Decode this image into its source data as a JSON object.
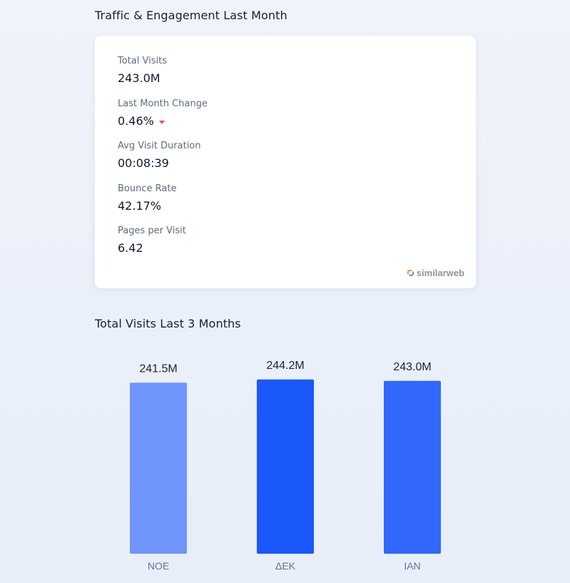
{
  "traffic": {
    "title": "Traffic & Engagement Last Month",
    "metrics": [
      {
        "label": "Total Visits",
        "value": "243.0M"
      },
      {
        "label": "Last Month Change",
        "value": "0.46%",
        "trend": "down"
      },
      {
        "label": "Avg Visit Duration",
        "value": "00:08:39"
      },
      {
        "label": "Bounce Rate",
        "value": "42.17%"
      },
      {
        "label": "Pages per Visit",
        "value": "6.42"
      }
    ],
    "brand": "similarweb"
  },
  "visits": {
    "title": "Total Visits Last 3 Months"
  },
  "chart_data": {
    "type": "bar",
    "categories": [
      "NOE",
      "ΔEK",
      "IAN"
    ],
    "values": [
      241.5,
      244.2,
      243.0
    ],
    "value_labels": [
      "241.5M",
      "244.2M",
      "243.0M"
    ],
    "unit": "M",
    "colors": [
      "#6f95fb",
      "#1a58fb",
      "#3168fb"
    ],
    "title": "Total Visits Last 3 Months",
    "xlabel": "",
    "ylabel": "",
    "grid": false,
    "legend": "none"
  },
  "colors": {
    "trend_down": "#ea4c5a",
    "brand_orange": "#f0924e"
  }
}
